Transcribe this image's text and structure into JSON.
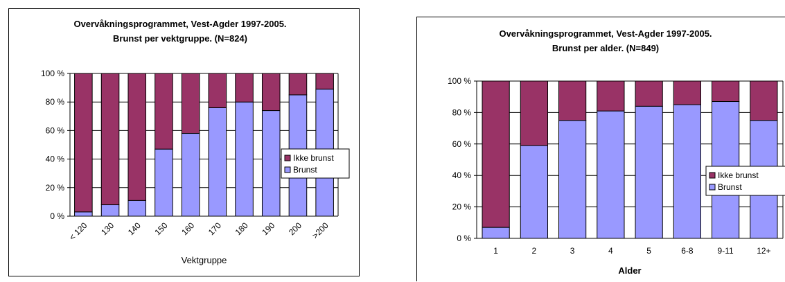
{
  "colors": {
    "ikke_brunst": "#993366",
    "brunst": "#9999ff",
    "plot_bg": "#ffffff",
    "axis": "#000000"
  },
  "chart_data": [
    {
      "type": "bar",
      "stacked": true,
      "percent": true,
      "title": "Overvåkningsprogrammet, Vest-Agder 1997-2005.",
      "subtitle": "Brunst per vektgruppe. (N=824)",
      "xlabel": "Vektgruppe",
      "ylabel": "",
      "ylim": [
        0,
        100
      ],
      "yticks": [
        "0 %",
        "20 %",
        "40 %",
        "60 %",
        "80 %",
        "100 %"
      ],
      "grid": true,
      "legend": "right",
      "categories": [
        "< 120",
        "130",
        "140",
        "150",
        "160",
        "170",
        "180",
        "190",
        "200",
        ">200"
      ],
      "series": [
        {
          "name": "Ikke brunst",
          "values": [
            97,
            92,
            89,
            53,
            42,
            24,
            20,
            26,
            15,
            11
          ]
        },
        {
          "name": "Brunst",
          "values": [
            3,
            8,
            11,
            47,
            58,
            76,
            80,
            74,
            85,
            89
          ]
        }
      ]
    },
    {
      "type": "bar",
      "stacked": true,
      "percent": true,
      "title": "Overvåkningsprogrammet, Vest-Agder 1997-2005.",
      "subtitle": "Brunst per alder. (N=849)",
      "xlabel": "Alder",
      "ylabel": "",
      "ylim": [
        0,
        100
      ],
      "yticks": [
        "0 %",
        "20 %",
        "40 %",
        "60 %",
        "80 %",
        "100 %"
      ],
      "grid": true,
      "legend": "right",
      "categories": [
        "1",
        "2",
        "3",
        "4",
        "5",
        "6-8",
        "9-11",
        "12+"
      ],
      "series": [
        {
          "name": "Ikke brunst",
          "values": [
            93,
            41,
            25,
            19,
            16,
            15,
            13,
            25
          ]
        },
        {
          "name": "Brunst",
          "values": [
            7,
            59,
            75,
            81,
            84,
            85,
            87,
            75
          ]
        }
      ]
    }
  ]
}
